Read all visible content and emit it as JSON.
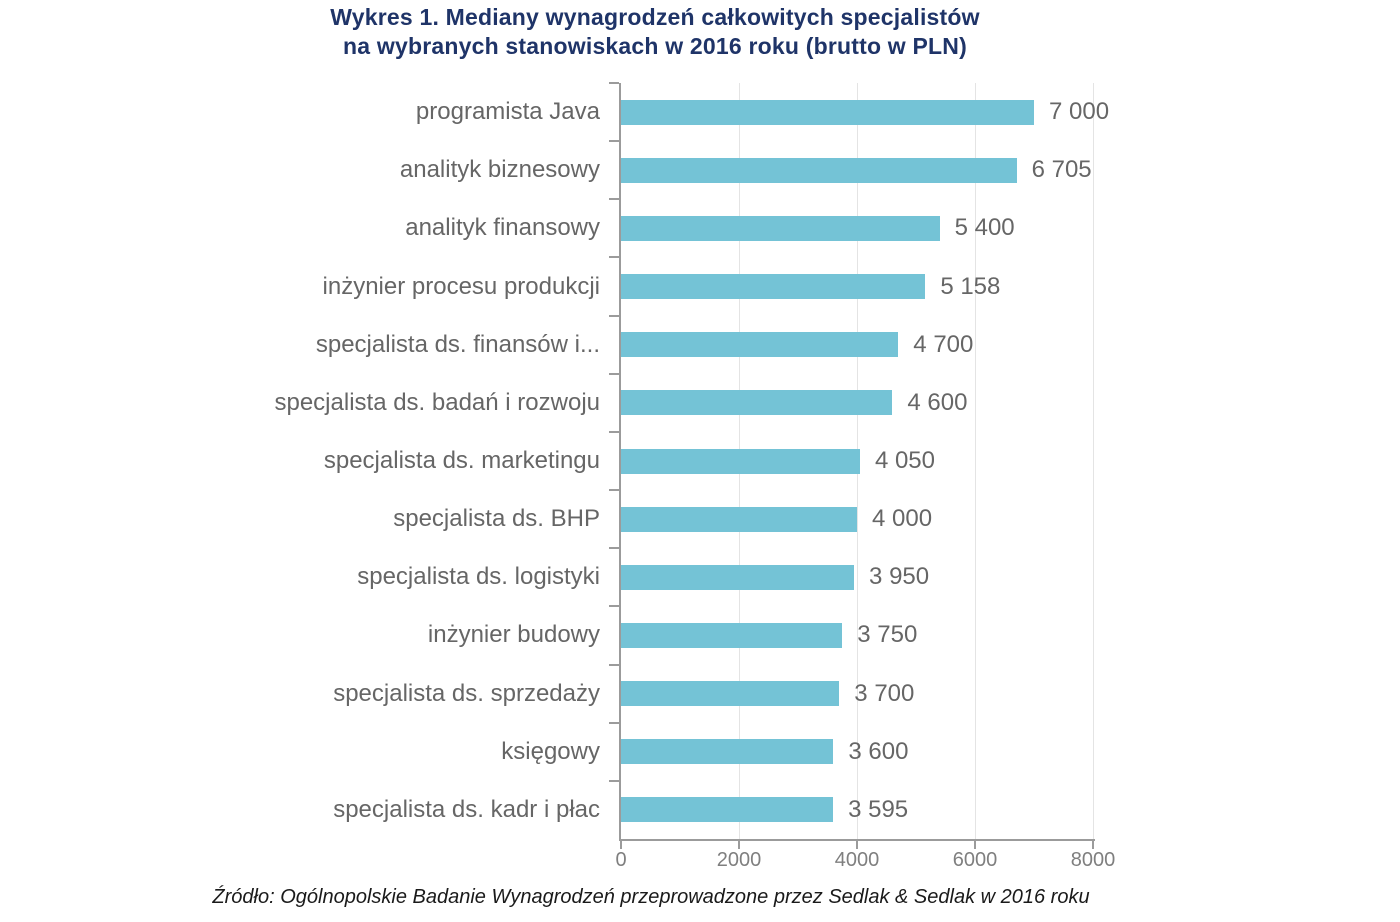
{
  "chart_data": {
    "type": "bar",
    "orientation": "horizontal",
    "title_line1": "Wykres 1. Mediany wynagrodzeń całkowitych specjalistów",
    "title_line2": "na wybranych stanowiskach w 2016 roku (brutto w PLN)",
    "categories": [
      "programista Java",
      "analityk biznesowy",
      "analityk finansowy",
      "inżynier procesu produkcji",
      "specjalista ds. finansów i...",
      "specjalista ds. badań i rozwoju",
      "specjalista ds. marketingu",
      "specjalista ds. BHP",
      "specjalista ds. logistyki",
      "inżynier budowy",
      "specjalista ds. sprzedaży",
      "księgowy",
      "specjalista ds. kadr i płac"
    ],
    "values": [
      7000,
      6705,
      5400,
      5158,
      4700,
      4600,
      4050,
      4000,
      3950,
      3750,
      3700,
      3600,
      3595
    ],
    "value_labels": [
      "7 000",
      "6 705",
      "5 400",
      "5 158",
      "4 700",
      "4 600",
      "4 050",
      "4 000",
      "3 950",
      "3 750",
      "3 700",
      "3 600",
      "3 595"
    ],
    "xlabel": "",
    "ylabel": "",
    "xlim": [
      0,
      8000
    ],
    "xticks": [
      0,
      2000,
      4000,
      6000,
      8000
    ],
    "xtick_labels": [
      "0",
      "2000",
      "4000",
      "6000",
      "8000"
    ],
    "grid": "vertical-light",
    "legend": "none",
    "colors": {
      "bar": "#74c3d6",
      "title": "#1f3468",
      "category_label": "#666666",
      "value_label": "#666666",
      "tick_label": "#7f7f7f",
      "axis": "#9b9b9b",
      "gridline": "#e4e4e4"
    },
    "source": "Źródło: Ogólnopolskie Badanie Wynagrodzeń przeprowadzone przez Sedlak & Sedlak w 2016 roku"
  }
}
